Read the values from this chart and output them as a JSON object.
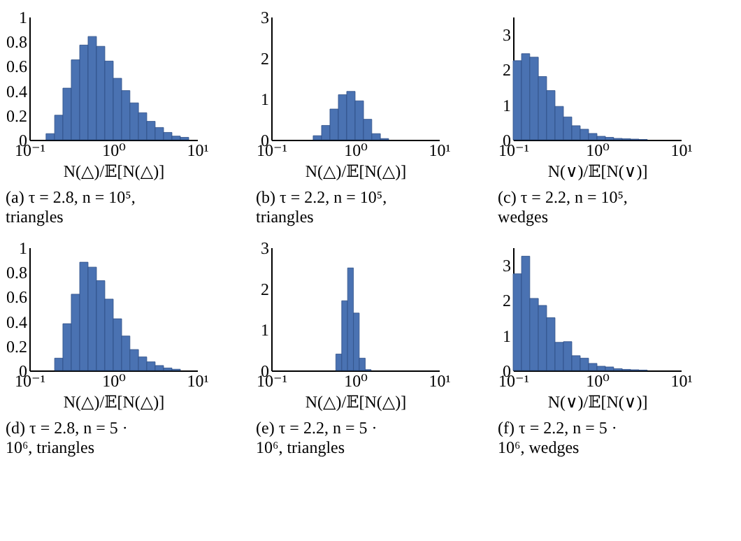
{
  "chart_data": [
    {
      "type": "histogram",
      "title": "(a) τ = 2.8, n = 10⁵, triangles",
      "xlabel": "N(△)/𝔼[N(△)]",
      "log": "x",
      "color": "#4a72b2",
      "bins": [
        0.158,
        0.2,
        0.251,
        0.316,
        0.398,
        0.501,
        0.631,
        0.794,
        1,
        1.26,
        1.58,
        2,
        2.51,
        3.16,
        3.98,
        5.01,
        6.31,
        7.94
      ],
      "values": [
        0.05,
        0.2,
        0.42,
        0.65,
        0.77,
        0.84,
        0.76,
        0.64,
        0.5,
        0.4,
        0.3,
        0.22,
        0.15,
        0.1,
        0.06,
        0.03,
        0.02
      ],
      "xlim": [
        0.1,
        10
      ],
      "xticks": [
        {
          "value": 0.1,
          "label": "10⁻¹"
        },
        {
          "value": 1,
          "label": "10⁰"
        },
        {
          "value": 10,
          "label": "10¹"
        }
      ],
      "ylim": [
        0,
        1
      ],
      "yticks": [
        0,
        0.2,
        0.4,
        0.6,
        0.8,
        1
      ]
    },
    {
      "type": "histogram",
      "title": "(b) τ = 2.2, n = 10⁵, triangles",
      "xlabel": "N(△)/𝔼[N(△)]",
      "log": "x",
      "color": "#4a72b2",
      "bins": [
        0.316,
        0.398,
        0.501,
        0.631,
        0.794,
        1,
        1.26,
        1.58,
        2,
        2.51
      ],
      "values": [
        0.1,
        0.35,
        0.75,
        1.1,
        1.18,
        0.95,
        0.5,
        0.15,
        0.03
      ],
      "xlim": [
        0.1,
        10
      ],
      "xticks": [
        {
          "value": 0.1,
          "label": "10⁻¹"
        },
        {
          "value": 1,
          "label": "10⁰"
        },
        {
          "value": 10,
          "label": "10¹"
        }
      ],
      "ylim": [
        0,
        3
      ],
      "yticks": [
        0,
        1,
        2,
        3
      ]
    },
    {
      "type": "histogram",
      "title": "(c) τ = 2.2, n = 10⁵, wedges",
      "xlabel": "N(∨)/𝔼[N(∨)]",
      "log": "x",
      "color": "#4a72b2",
      "bins": [
        0.1,
        0.126,
        0.158,
        0.2,
        0.251,
        0.316,
        0.398,
        0.501,
        0.631,
        0.794,
        1,
        1.26,
        1.58,
        2,
        2.51,
        3.16,
        3.98
      ],
      "values": [
        2.25,
        2.45,
        2.35,
        1.8,
        1.4,
        0.95,
        0.65,
        0.4,
        0.3,
        0.18,
        0.1,
        0.07,
        0.04,
        0.03,
        0.02,
        0.01
      ],
      "xlim": [
        0.1,
        10
      ],
      "xticks": [
        {
          "value": 0.1,
          "label": "10⁻¹"
        },
        {
          "value": 1,
          "label": "10⁰"
        },
        {
          "value": 10,
          "label": "10¹"
        }
      ],
      "ylim": [
        0,
        3.5
      ],
      "yticks": [
        0,
        1,
        2,
        3
      ]
    },
    {
      "type": "histogram",
      "title": "(d) τ = 2.8, n = 5 · 10⁶, triangles",
      "xlabel": "N(△)/𝔼[N(△)]",
      "log": "x",
      "color": "#4a72b2",
      "bins": [
        0.2,
        0.251,
        0.316,
        0.398,
        0.501,
        0.631,
        0.794,
        1,
        1.26,
        1.58,
        2,
        2.51,
        3.16,
        3.98,
        5.01,
        6.31
      ],
      "values": [
        0.1,
        0.38,
        0.62,
        0.88,
        0.84,
        0.73,
        0.58,
        0.42,
        0.28,
        0.17,
        0.11,
        0.07,
        0.04,
        0.02,
        0.01
      ],
      "xlim": [
        0.1,
        10
      ],
      "xticks": [
        {
          "value": 0.1,
          "label": "10⁻¹"
        },
        {
          "value": 1,
          "label": "10⁰"
        },
        {
          "value": 10,
          "label": "10¹"
        }
      ],
      "ylim": [
        0,
        1
      ],
      "yticks": [
        0,
        0.2,
        0.4,
        0.6,
        0.8,
        1
      ]
    },
    {
      "type": "histogram",
      "title": "(e) τ = 2.2, n = 5 · 10⁶, triangles",
      "xlabel": "N(△)/𝔼[N(△)]",
      "log": "x",
      "color": "#4a72b2",
      "bins": [
        0.589,
        0.692,
        0.813,
        0.955,
        1.12,
        1.32,
        1.55
      ],
      "values": [
        0.4,
        1.7,
        2.5,
        1.4,
        0.3,
        0.02
      ],
      "xlim": [
        0.1,
        10
      ],
      "xticks": [
        {
          "value": 0.1,
          "label": "10⁻¹"
        },
        {
          "value": 1,
          "label": "10⁰"
        },
        {
          "value": 10,
          "label": "10¹"
        }
      ],
      "ylim": [
        0,
        3
      ],
      "yticks": [
        0,
        1,
        2,
        3
      ]
    },
    {
      "type": "histogram",
      "title": "(f) τ = 2.2, n = 5 · 10⁶, wedges",
      "xlabel": "N(∨)/𝔼[N(∨)]",
      "log": "x",
      "color": "#4a72b2",
      "bins": [
        0.1,
        0.126,
        0.158,
        0.2,
        0.251,
        0.316,
        0.398,
        0.501,
        0.631,
        0.794,
        1,
        1.26,
        1.58,
        2,
        2.51,
        3.16,
        3.98
      ],
      "values": [
        2.75,
        3.25,
        2.05,
        1.85,
        1.5,
        0.8,
        0.82,
        0.42,
        0.35,
        0.2,
        0.12,
        0.1,
        0.05,
        0.03,
        0.02,
        0.01
      ],
      "xlim": [
        0.1,
        10
      ],
      "xticks": [
        {
          "value": 0.1,
          "label": "10⁻¹"
        },
        {
          "value": 1,
          "label": "10⁰"
        },
        {
          "value": 10,
          "label": "10¹"
        }
      ],
      "ylim": [
        0,
        3.5
      ],
      "yticks": [
        0,
        1,
        2,
        3
      ]
    }
  ]
}
